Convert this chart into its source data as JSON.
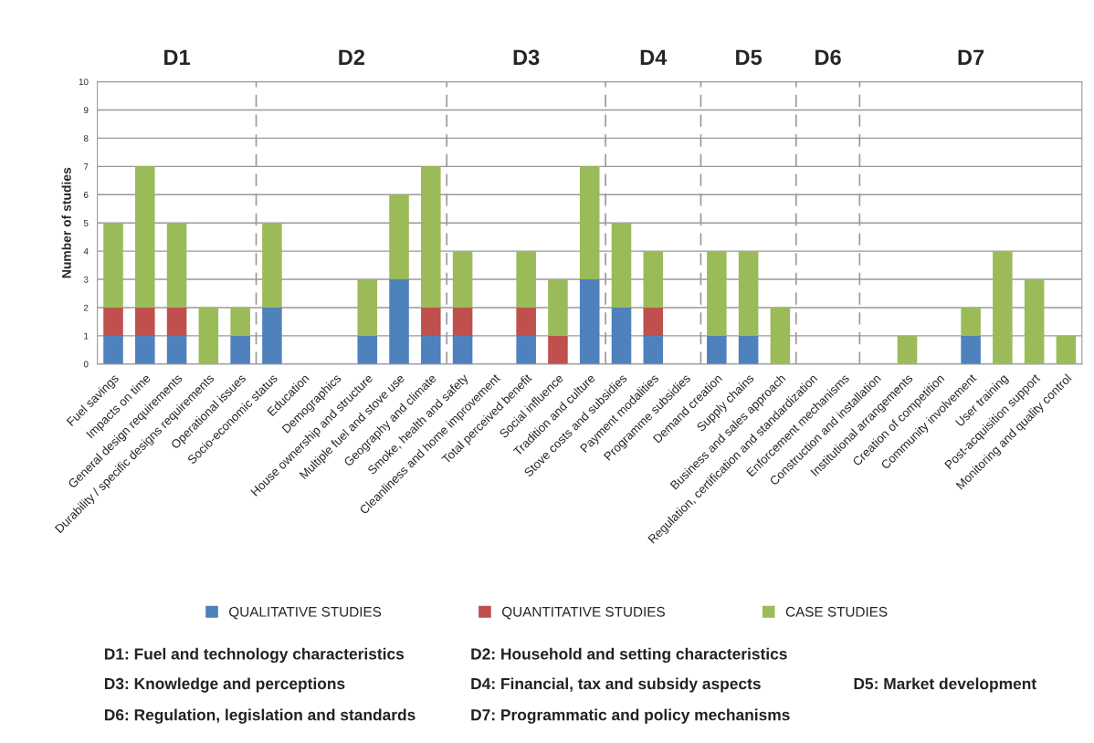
{
  "chart_data": {
    "type": "bar",
    "stacked": true,
    "ylabel": "Number of studies",
    "categories": [
      "Fuel savings",
      "Impacts on time",
      "General design requirements",
      "Durability / specific designs requirements",
      "Operational issues",
      "Socio-economic status",
      "Education",
      "Demographics",
      "House ownership and structure",
      "Multiple fuel and stove use",
      "Geography and climate",
      "Smoke, health and safety",
      "Cleanliness and home improvement",
      "Total perceived benefit",
      "Social influence",
      "Tradition and culture",
      "Stove costs and subsidies",
      "Payment modalities",
      "Programme subsidies",
      "Demand creation",
      "Supply chains",
      "Business and sales approach",
      "Regulation, certification and standardization",
      "Enforcement mechanisms",
      "Construction and installation",
      "Institutional arrangements",
      "Creation of competition",
      "Community involvement",
      "User training",
      "Post-acquisition support",
      "Monitoring and quality control"
    ],
    "series": [
      {
        "name": "QUALITATIVE STUDIES",
        "color": "#4f81bd",
        "values": [
          1,
          1,
          1,
          0,
          1,
          2,
          0,
          0,
          1,
          3,
          1,
          1,
          0,
          1,
          0,
          3,
          2,
          1,
          0,
          1,
          1,
          0,
          0,
          0,
          0,
          0,
          0,
          1,
          0,
          0,
          0
        ]
      },
      {
        "name": "QUANTITATIVE STUDIES",
        "color": "#c0504d",
        "values": [
          1,
          1,
          1,
          0,
          0,
          0,
          0,
          0,
          0,
          0,
          1,
          1,
          0,
          1,
          1,
          0,
          0,
          1,
          0,
          0,
          0,
          0,
          0,
          0,
          0,
          0,
          0,
          0,
          0,
          0,
          0
        ]
      },
      {
        "name": "CASE STUDIES",
        "color": "#9bbb59",
        "values": [
          3,
          5,
          3,
          2,
          1,
          3,
          0,
          0,
          2,
          3,
          5,
          2,
          0,
          2,
          2,
          4,
          3,
          2,
          0,
          3,
          3,
          2,
          0,
          0,
          0,
          1,
          0,
          1,
          4,
          3,
          1
        ]
      }
    ],
    "ylim": [
      0,
      10
    ],
    "yticks": [
      0,
      1,
      2,
      3,
      4,
      5,
      6,
      7,
      8,
      9,
      10
    ],
    "grid": "y",
    "legend": "bottom",
    "annotations": [
      "D1",
      "D2",
      "D3",
      "D4",
      "D5",
      "D6",
      "D7",
      "D1: Fuel and technology characteristics",
      "D2: Household and setting characteristics",
      "D3: Knowledge and perceptions",
      "D4: Financial, tax and subsidy aspects",
      "D5: Market development",
      "D6: Regulation, legislation and standards",
      "D7: Programmatic and policy mechanisms"
    ]
  }
}
